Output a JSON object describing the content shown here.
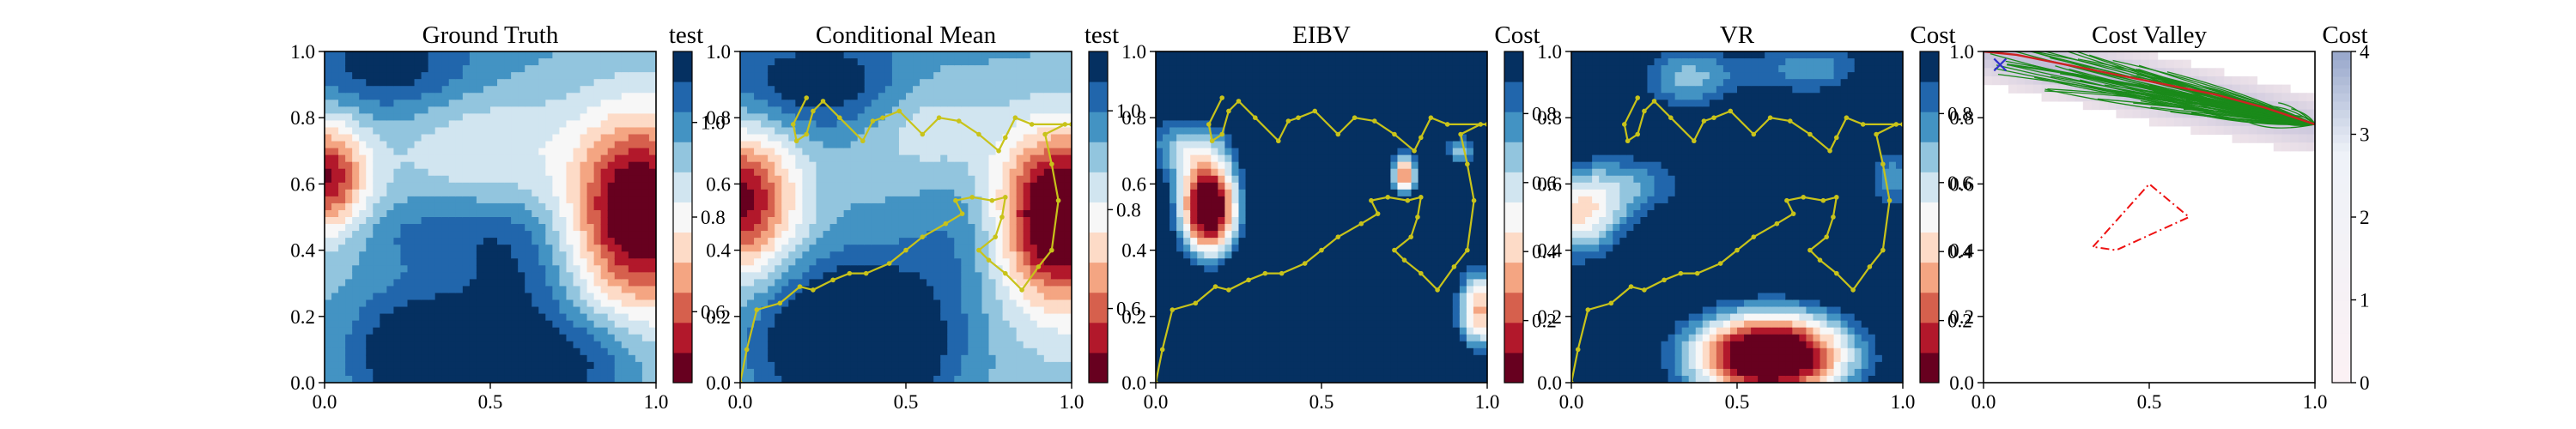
{
  "colors": {
    "rdbu": [
      "#67001f",
      "#b2182b",
      "#d6604d",
      "#f4a582",
      "#fddbc7",
      "#f7f7f7",
      "#d1e5f0",
      "#92c5de",
      "#4393c3",
      "#2166ac",
      "#053061"
    ],
    "path": "#c8c31a",
    "tree": "#1a8a1a",
    "route": "#cc2222",
    "obstacle": "#ee1111",
    "start_marker": "#3030cc",
    "cost_light": "#f4e8ec",
    "cost_mid": "#b7b6d4"
  },
  "chart_data": [
    {
      "type": "heatmap",
      "title": "Ground Truth",
      "colorbar_label": "test",
      "xlim": [
        0,
        1
      ],
      "ylim": [
        0,
        1
      ],
      "xticks": [
        "0.0",
        "0.5",
        "1.0"
      ],
      "yticks": [
        "0.0",
        "0.2",
        "0.4",
        "0.6",
        "0.8",
        "1.0"
      ],
      "colorbar_range": [
        0.45,
        1.15
      ],
      "colorbar_ticks": [
        "0.6",
        "0.8",
        "1.0"
      ],
      "colorbar_tick_values": [
        0.6,
        0.8,
        1.0
      ],
      "field": {
        "base": 0.92,
        "gradient": [
          -0.02,
          0.06
        ],
        "blobs": [
          {
            "x": 0.95,
            "y": 0.52,
            "sx": 0.14,
            "sy": 0.2,
            "a": -0.55
          },
          {
            "x": 0.0,
            "y": 0.62,
            "sx": 0.09,
            "sy": 0.12,
            "a": -0.45
          },
          {
            "x": 0.48,
            "y": 0.72,
            "sx": 0.2,
            "sy": 0.12,
            "a": -0.12
          },
          {
            "x": 0.3,
            "y": 0.08,
            "sx": 0.16,
            "sy": 0.14,
            "a": 0.3
          },
          {
            "x": 0.75,
            "y": 0.05,
            "sx": 0.16,
            "sy": 0.12,
            "a": 0.2
          },
          {
            "x": 0.58,
            "y": 0.3,
            "sx": 0.13,
            "sy": 0.15,
            "a": 0.14
          },
          {
            "x": 0.2,
            "y": 0.95,
            "sx": 0.18,
            "sy": 0.1,
            "a": 0.16
          },
          {
            "x": 0.35,
            "y": 0.45,
            "sx": 0.2,
            "sy": 0.08,
            "a": 0.1
          }
        ]
      }
    },
    {
      "type": "heatmap",
      "title": "Conditional Mean",
      "colorbar_label": "test",
      "xlim": [
        0,
        1
      ],
      "ylim": [
        0,
        1
      ],
      "xticks": [
        "0.0",
        "0.5",
        "1.0"
      ],
      "yticks": [
        "0.0",
        "0.2",
        "0.4",
        "0.6",
        "0.8",
        "1.0"
      ],
      "colorbar_range": [
        0.45,
        1.12
      ],
      "colorbar_ticks": [
        "0.6",
        "0.8",
        "1.0"
      ],
      "colorbar_tick_values": [
        0.6,
        0.8,
        1.0
      ],
      "field": {
        "base": 0.9,
        "gradient": [
          0.0,
          0.05
        ],
        "blobs": [
          {
            "x": 0.97,
            "y": 0.5,
            "sx": 0.14,
            "sy": 0.18,
            "a": -0.6
          },
          {
            "x": 0.0,
            "y": 0.55,
            "sx": 0.12,
            "sy": 0.15,
            "a": -0.45
          },
          {
            "x": 0.35,
            "y": 0.12,
            "sx": 0.2,
            "sy": 0.17,
            "a": 0.38
          },
          {
            "x": 0.55,
            "y": 0.8,
            "sx": 0.14,
            "sy": 0.12,
            "a": -0.12
          },
          {
            "x": 0.25,
            "y": 0.9,
            "sx": 0.22,
            "sy": 0.1,
            "a": 0.18
          },
          {
            "x": 0.7,
            "y": 0.45,
            "sx": 0.12,
            "sy": 0.13,
            "a": 0.1
          }
        ]
      },
      "path": [
        [
          0,
          0
        ],
        [
          0.02,
          0.1
        ],
        [
          0.05,
          0.22
        ],
        [
          0.12,
          0.24
        ],
        [
          0.18,
          0.29
        ],
        [
          0.22,
          0.28
        ],
        [
          0.28,
          0.31
        ],
        [
          0.33,
          0.33
        ],
        [
          0.38,
          0.33
        ],
        [
          0.45,
          0.36
        ],
        [
          0.5,
          0.4
        ],
        [
          0.55,
          0.44
        ],
        [
          0.62,
          0.48
        ],
        [
          0.67,
          0.51
        ],
        [
          0.65,
          0.55
        ],
        [
          0.7,
          0.56
        ],
        [
          0.76,
          0.55
        ],
        [
          0.8,
          0.56
        ],
        [
          0.79,
          0.5
        ],
        [
          0.77,
          0.44
        ],
        [
          0.72,
          0.4
        ],
        [
          0.75,
          0.37
        ],
        [
          0.8,
          0.33
        ],
        [
          0.85,
          0.28
        ],
        [
          0.9,
          0.35
        ],
        [
          0.94,
          0.4
        ],
        [
          0.96,
          0.55
        ],
        [
          0.94,
          0.66
        ],
        [
          0.92,
          0.75
        ],
        [
          0.98,
          0.78
        ],
        [
          1.0,
          0.78
        ],
        [
          0.88,
          0.78
        ],
        [
          0.83,
          0.8
        ],
        [
          0.8,
          0.74
        ],
        [
          0.78,
          0.7
        ],
        [
          0.72,
          0.75
        ],
        [
          0.66,
          0.79
        ],
        [
          0.6,
          0.8
        ],
        [
          0.55,
          0.75
        ],
        [
          0.48,
          0.82
        ],
        [
          0.43,
          0.8
        ],
        [
          0.4,
          0.79
        ],
        [
          0.37,
          0.73
        ],
        [
          0.3,
          0.8
        ],
        [
          0.25,
          0.85
        ],
        [
          0.22,
          0.82
        ],
        [
          0.2,
          0.75
        ],
        [
          0.17,
          0.73
        ],
        [
          0.16,
          0.78
        ],
        [
          0.2,
          0.86
        ]
      ]
    },
    {
      "type": "heatmap",
      "title": "EIBV",
      "colorbar_label": "Cost",
      "xlim": [
        0,
        1
      ],
      "ylim": [
        0,
        1
      ],
      "xticks": [
        "0.0",
        "0.5",
        "1.0"
      ],
      "yticks": [
        "0.0",
        "0.2",
        "0.4",
        "0.6",
        "0.8",
        "1.0"
      ],
      "colorbar_range": [
        0.02,
        0.98
      ],
      "colorbar_ticks": [
        "0.2",
        "0.4",
        "0.6",
        "0.8"
      ],
      "colorbar_tick_values": [
        0.2,
        0.4,
        0.6,
        0.8
      ],
      "field": {
        "base": 1.25,
        "gradient": [
          0.0,
          0.0
        ],
        "blobs": [
          {
            "x": 0.16,
            "y": 0.52,
            "sx": 0.07,
            "sy": 0.11,
            "a": -1.35
          },
          {
            "x": 0.08,
            "y": 0.72,
            "sx": 0.12,
            "sy": 0.08,
            "a": -0.5
          },
          {
            "x": 0.98,
            "y": 0.22,
            "sx": 0.06,
            "sy": 0.1,
            "a": -0.9
          },
          {
            "x": 0.75,
            "y": 0.63,
            "sx": 0.03,
            "sy": 0.05,
            "a": -1.0
          },
          {
            "x": 0.92,
            "y": 0.7,
            "sx": 0.04,
            "sy": 0.04,
            "a": -0.6
          }
        ]
      },
      "path": [
        [
          0,
          0
        ],
        [
          0.02,
          0.1
        ],
        [
          0.05,
          0.22
        ],
        [
          0.12,
          0.24
        ],
        [
          0.18,
          0.29
        ],
        [
          0.22,
          0.28
        ],
        [
          0.28,
          0.31
        ],
        [
          0.33,
          0.33
        ],
        [
          0.38,
          0.33
        ],
        [
          0.45,
          0.36
        ],
        [
          0.5,
          0.4
        ],
        [
          0.55,
          0.44
        ],
        [
          0.62,
          0.48
        ],
        [
          0.67,
          0.51
        ],
        [
          0.65,
          0.55
        ],
        [
          0.7,
          0.56
        ],
        [
          0.76,
          0.55
        ],
        [
          0.8,
          0.56
        ],
        [
          0.79,
          0.5
        ],
        [
          0.77,
          0.44
        ],
        [
          0.72,
          0.4
        ],
        [
          0.75,
          0.37
        ],
        [
          0.8,
          0.33
        ],
        [
          0.85,
          0.28
        ],
        [
          0.9,
          0.35
        ],
        [
          0.94,
          0.4
        ],
        [
          0.96,
          0.55
        ],
        [
          0.94,
          0.66
        ],
        [
          0.92,
          0.75
        ],
        [
          0.98,
          0.78
        ],
        [
          1.0,
          0.78
        ],
        [
          0.88,
          0.78
        ],
        [
          0.83,
          0.8
        ],
        [
          0.8,
          0.74
        ],
        [
          0.78,
          0.7
        ],
        [
          0.72,
          0.75
        ],
        [
          0.66,
          0.79
        ],
        [
          0.6,
          0.8
        ],
        [
          0.55,
          0.75
        ],
        [
          0.48,
          0.82
        ],
        [
          0.43,
          0.8
        ],
        [
          0.4,
          0.79
        ],
        [
          0.37,
          0.73
        ],
        [
          0.3,
          0.8
        ],
        [
          0.25,
          0.85
        ],
        [
          0.22,
          0.82
        ],
        [
          0.2,
          0.75
        ],
        [
          0.17,
          0.73
        ],
        [
          0.16,
          0.78
        ],
        [
          0.2,
          0.86
        ]
      ]
    },
    {
      "type": "heatmap",
      "title": "VR",
      "colorbar_label": "Cost",
      "xlim": [
        0,
        1
      ],
      "ylim": [
        0,
        1
      ],
      "xticks": [
        "0.0",
        "0.5",
        "1.0"
      ],
      "yticks": [
        "0.0",
        "0.2",
        "0.4",
        "0.6",
        "0.8",
        "1.0"
      ],
      "colorbar_range": [
        0.02,
        0.98
      ],
      "colorbar_ticks": [
        "0.2",
        "0.4",
        "0.6",
        "0.8"
      ],
      "colorbar_tick_values": [
        0.2,
        0.4,
        0.6,
        0.8
      ],
      "field": {
        "base": 1.15,
        "gradient": [
          0.0,
          0.0
        ],
        "blobs": [
          {
            "x": 0.6,
            "y": 0.08,
            "sx": 0.18,
            "sy": 0.1,
            "a": -1.35
          },
          {
            "x": 0.02,
            "y": 0.5,
            "sx": 0.1,
            "sy": 0.1,
            "a": -0.65
          },
          {
            "x": 0.35,
            "y": 0.92,
            "sx": 0.12,
            "sy": 0.08,
            "a": -0.45
          },
          {
            "x": 0.72,
            "y": 0.95,
            "sx": 0.14,
            "sy": 0.07,
            "a": -0.4
          },
          {
            "x": 0.97,
            "y": 0.62,
            "sx": 0.06,
            "sy": 0.08,
            "a": -0.4
          },
          {
            "x": 0.2,
            "y": 0.6,
            "sx": 0.14,
            "sy": 0.08,
            "a": -0.35
          }
        ]
      },
      "path": [
        [
          0,
          0
        ],
        [
          0.02,
          0.1
        ],
        [
          0.05,
          0.22
        ],
        [
          0.12,
          0.24
        ],
        [
          0.18,
          0.29
        ],
        [
          0.22,
          0.28
        ],
        [
          0.28,
          0.31
        ],
        [
          0.33,
          0.33
        ],
        [
          0.38,
          0.33
        ],
        [
          0.45,
          0.36
        ],
        [
          0.5,
          0.4
        ],
        [
          0.55,
          0.44
        ],
        [
          0.62,
          0.48
        ],
        [
          0.67,
          0.51
        ],
        [
          0.65,
          0.55
        ],
        [
          0.7,
          0.56
        ],
        [
          0.76,
          0.55
        ],
        [
          0.8,
          0.56
        ],
        [
          0.79,
          0.5
        ],
        [
          0.77,
          0.44
        ],
        [
          0.72,
          0.4
        ],
        [
          0.75,
          0.37
        ],
        [
          0.8,
          0.33
        ],
        [
          0.85,
          0.28
        ],
        [
          0.9,
          0.35
        ],
        [
          0.94,
          0.4
        ],
        [
          0.96,
          0.55
        ],
        [
          0.94,
          0.66
        ],
        [
          0.92,
          0.75
        ],
        [
          0.98,
          0.78
        ],
        [
          1.0,
          0.78
        ],
        [
          0.88,
          0.78
        ],
        [
          0.83,
          0.8
        ],
        [
          0.8,
          0.74
        ],
        [
          0.78,
          0.7
        ],
        [
          0.72,
          0.75
        ],
        [
          0.66,
          0.79
        ],
        [
          0.6,
          0.8
        ],
        [
          0.55,
          0.75
        ],
        [
          0.48,
          0.82
        ],
        [
          0.43,
          0.8
        ],
        [
          0.4,
          0.79
        ],
        [
          0.37,
          0.73
        ],
        [
          0.3,
          0.8
        ],
        [
          0.25,
          0.85
        ],
        [
          0.22,
          0.82
        ],
        [
          0.2,
          0.75
        ],
        [
          0.17,
          0.73
        ],
        [
          0.16,
          0.78
        ],
        [
          0.2,
          0.86
        ]
      ]
    },
    {
      "type": "scatter",
      "title": "Cost Valley",
      "colorbar_label": "Cost",
      "xlim": [
        0,
        1
      ],
      "ylim": [
        0,
        1
      ],
      "xticks": [
        "0.0",
        "0.5",
        "1.0"
      ],
      "yticks": [
        "0.0",
        "0.2",
        "0.4",
        "0.6",
        "0.8",
        "1.0"
      ],
      "colorbar_range": [
        0,
        4
      ],
      "colorbar_ticks": [
        "0",
        "1",
        "2",
        "3",
        "4"
      ],
      "colorbar_tick_values": [
        0,
        1,
        2,
        3,
        4
      ],
      "start_marker": [
        0.05,
        0.96
      ],
      "tree_root": [
        1.0,
        0.78
      ],
      "route": [
        [
          1.0,
          0.78
        ],
        [
          0.85,
          0.83
        ],
        [
          0.7,
          0.87
        ],
        [
          0.55,
          0.9
        ],
        [
          0.4,
          0.93
        ],
        [
          0.25,
          0.96
        ],
        [
          0.1,
          0.99
        ],
        [
          0.0,
          1.0
        ]
      ],
      "obstacle": [
        [
          0.33,
          0.41
        ],
        [
          0.5,
          0.6
        ],
        [
          0.62,
          0.5
        ],
        [
          0.4,
          0.4
        ],
        [
          0.33,
          0.41
        ]
      ]
    }
  ]
}
